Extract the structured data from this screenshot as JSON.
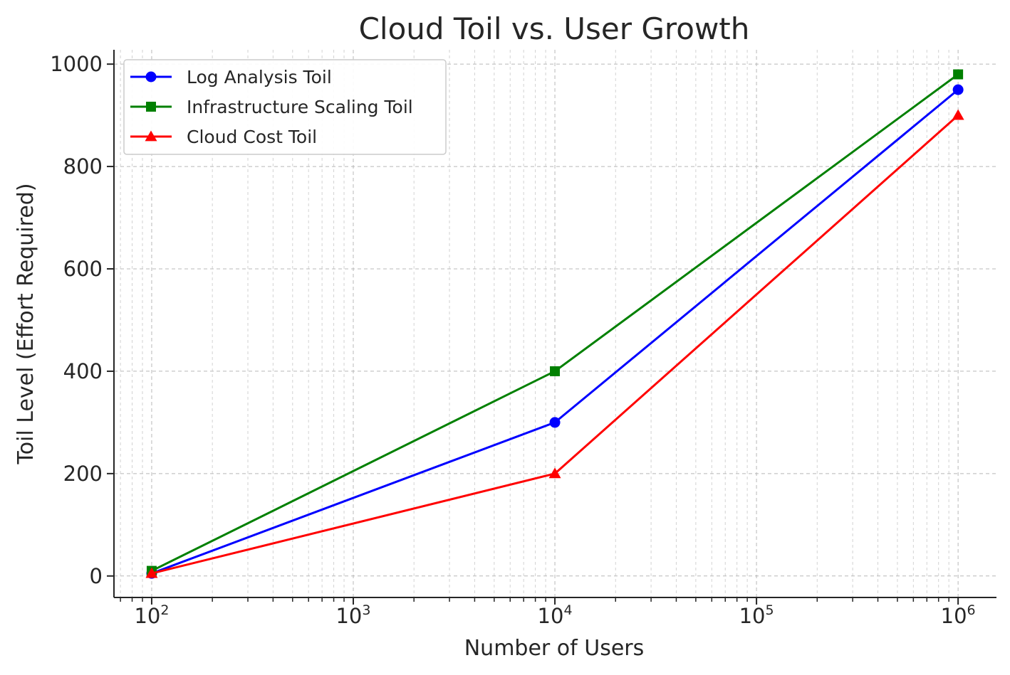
{
  "chart_data": {
    "type": "line",
    "title": "Cloud Toil vs. User Growth",
    "xlabel": "Number of Users",
    "ylabel": "Toil Level (Effort Required)",
    "x_scale": "log",
    "x": [
      100,
      10000,
      1000000
    ],
    "xlim": [
      65,
      1550000
    ],
    "ylim": [
      -42,
      1028
    ],
    "x_ticks": [
      {
        "value": 100,
        "base": "10",
        "exp": "2"
      },
      {
        "value": 1000,
        "base": "10",
        "exp": "3"
      },
      {
        "value": 10000,
        "base": "10",
        "exp": "4"
      },
      {
        "value": 100000,
        "base": "10",
        "exp": "5"
      },
      {
        "value": 1000000,
        "base": "10",
        "exp": "6"
      }
    ],
    "y_ticks": [
      {
        "value": 0,
        "label": "0"
      },
      {
        "value": 200,
        "label": "200"
      },
      {
        "value": 400,
        "label": "400"
      },
      {
        "value": 600,
        "label": "600"
      },
      {
        "value": 800,
        "label": "800"
      },
      {
        "value": 1000,
        "label": "1000"
      }
    ],
    "grid": true,
    "legend_position": "top-left",
    "series": [
      {
        "name": "Log Analysis Toil",
        "values": [
          5,
          300,
          950
        ],
        "color": "#0000ff",
        "marker": "circle"
      },
      {
        "name": "Infrastructure Scaling Toil",
        "values": [
          10,
          400,
          980
        ],
        "color": "#008000",
        "marker": "square"
      },
      {
        "name": "Cloud Cost Toil",
        "values": [
          5,
          200,
          900
        ],
        "color": "#ff0000",
        "marker": "triangle"
      }
    ]
  }
}
